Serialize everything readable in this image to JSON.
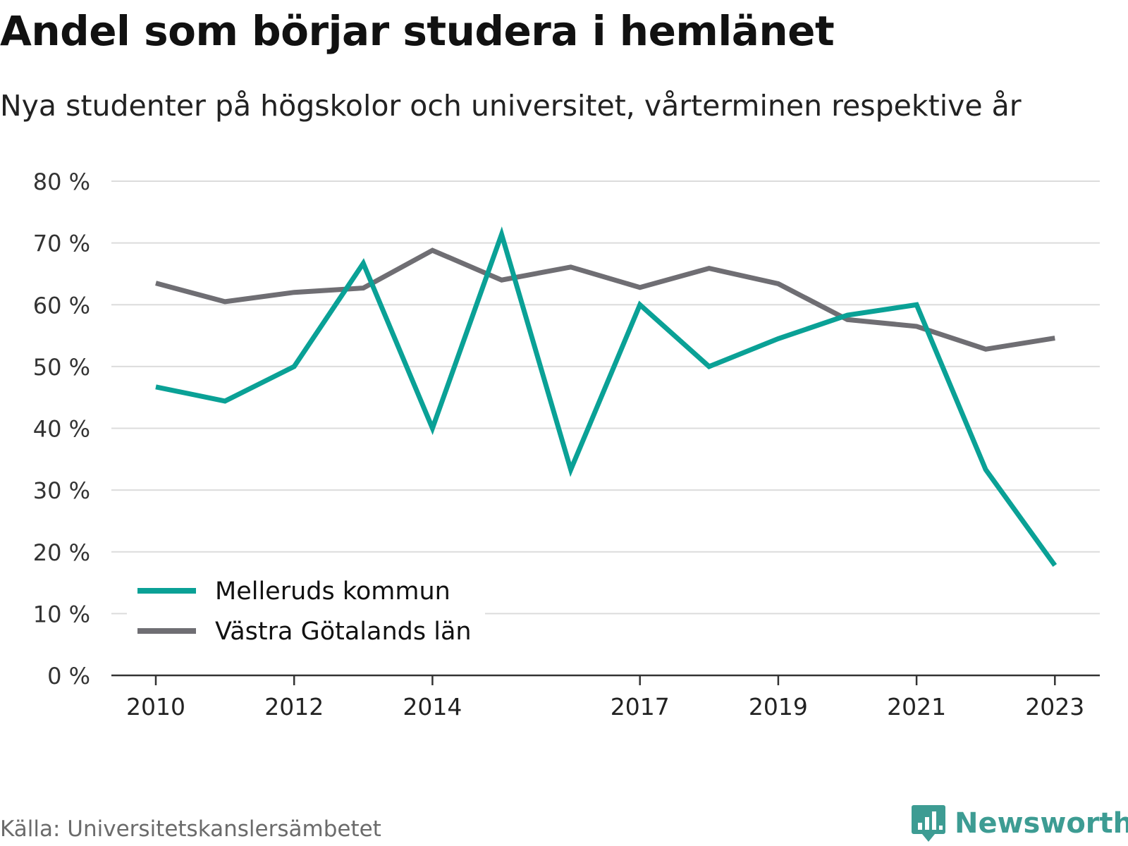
{
  "title": "Andel som börjar studera i hemlänet",
  "subtitle": "Nya studenter på högskolor och universitet, vårterminen respektive år",
  "source": "Källa: Universitetskanslersämbetet",
  "brand": {
    "name": "Newsworthy",
    "icon": "bar-chart-speech-bubble-icon",
    "color": "#3d9c93"
  },
  "chart_data": {
    "type": "line",
    "x": [
      2010,
      2011,
      2012,
      2013,
      2014,
      2015,
      2016,
      2017,
      2018,
      2019,
      2020,
      2021,
      2022,
      2023
    ],
    "x_tick_labels": [
      "2010",
      "2012",
      "2014",
      "2017",
      "2019",
      "2021",
      "2023"
    ],
    "y_tick_labels": [
      "0 %",
      "10 %",
      "20 %",
      "30 %",
      "40 %",
      "50 %",
      "60 %",
      "70 %",
      "80 %"
    ],
    "ylim": [
      0,
      80
    ],
    "grid": true,
    "legend_position": "bottom-left",
    "series": [
      {
        "name": "Melleruds kommun",
        "color": "#0aa196",
        "values": [
          46.7,
          44.4,
          50.0,
          66.7,
          40.0,
          71.4,
          33.3,
          60.0,
          50.0,
          54.5,
          58.3,
          60.0,
          33.3,
          17.8
        ]
      },
      {
        "name": "Västra Götalands län",
        "color": "#6f6e73",
        "values": [
          63.5,
          60.5,
          62.0,
          62.7,
          68.8,
          64.0,
          66.1,
          62.8,
          65.9,
          63.4,
          57.6,
          56.5,
          52.8,
          54.6
        ]
      }
    ]
  }
}
